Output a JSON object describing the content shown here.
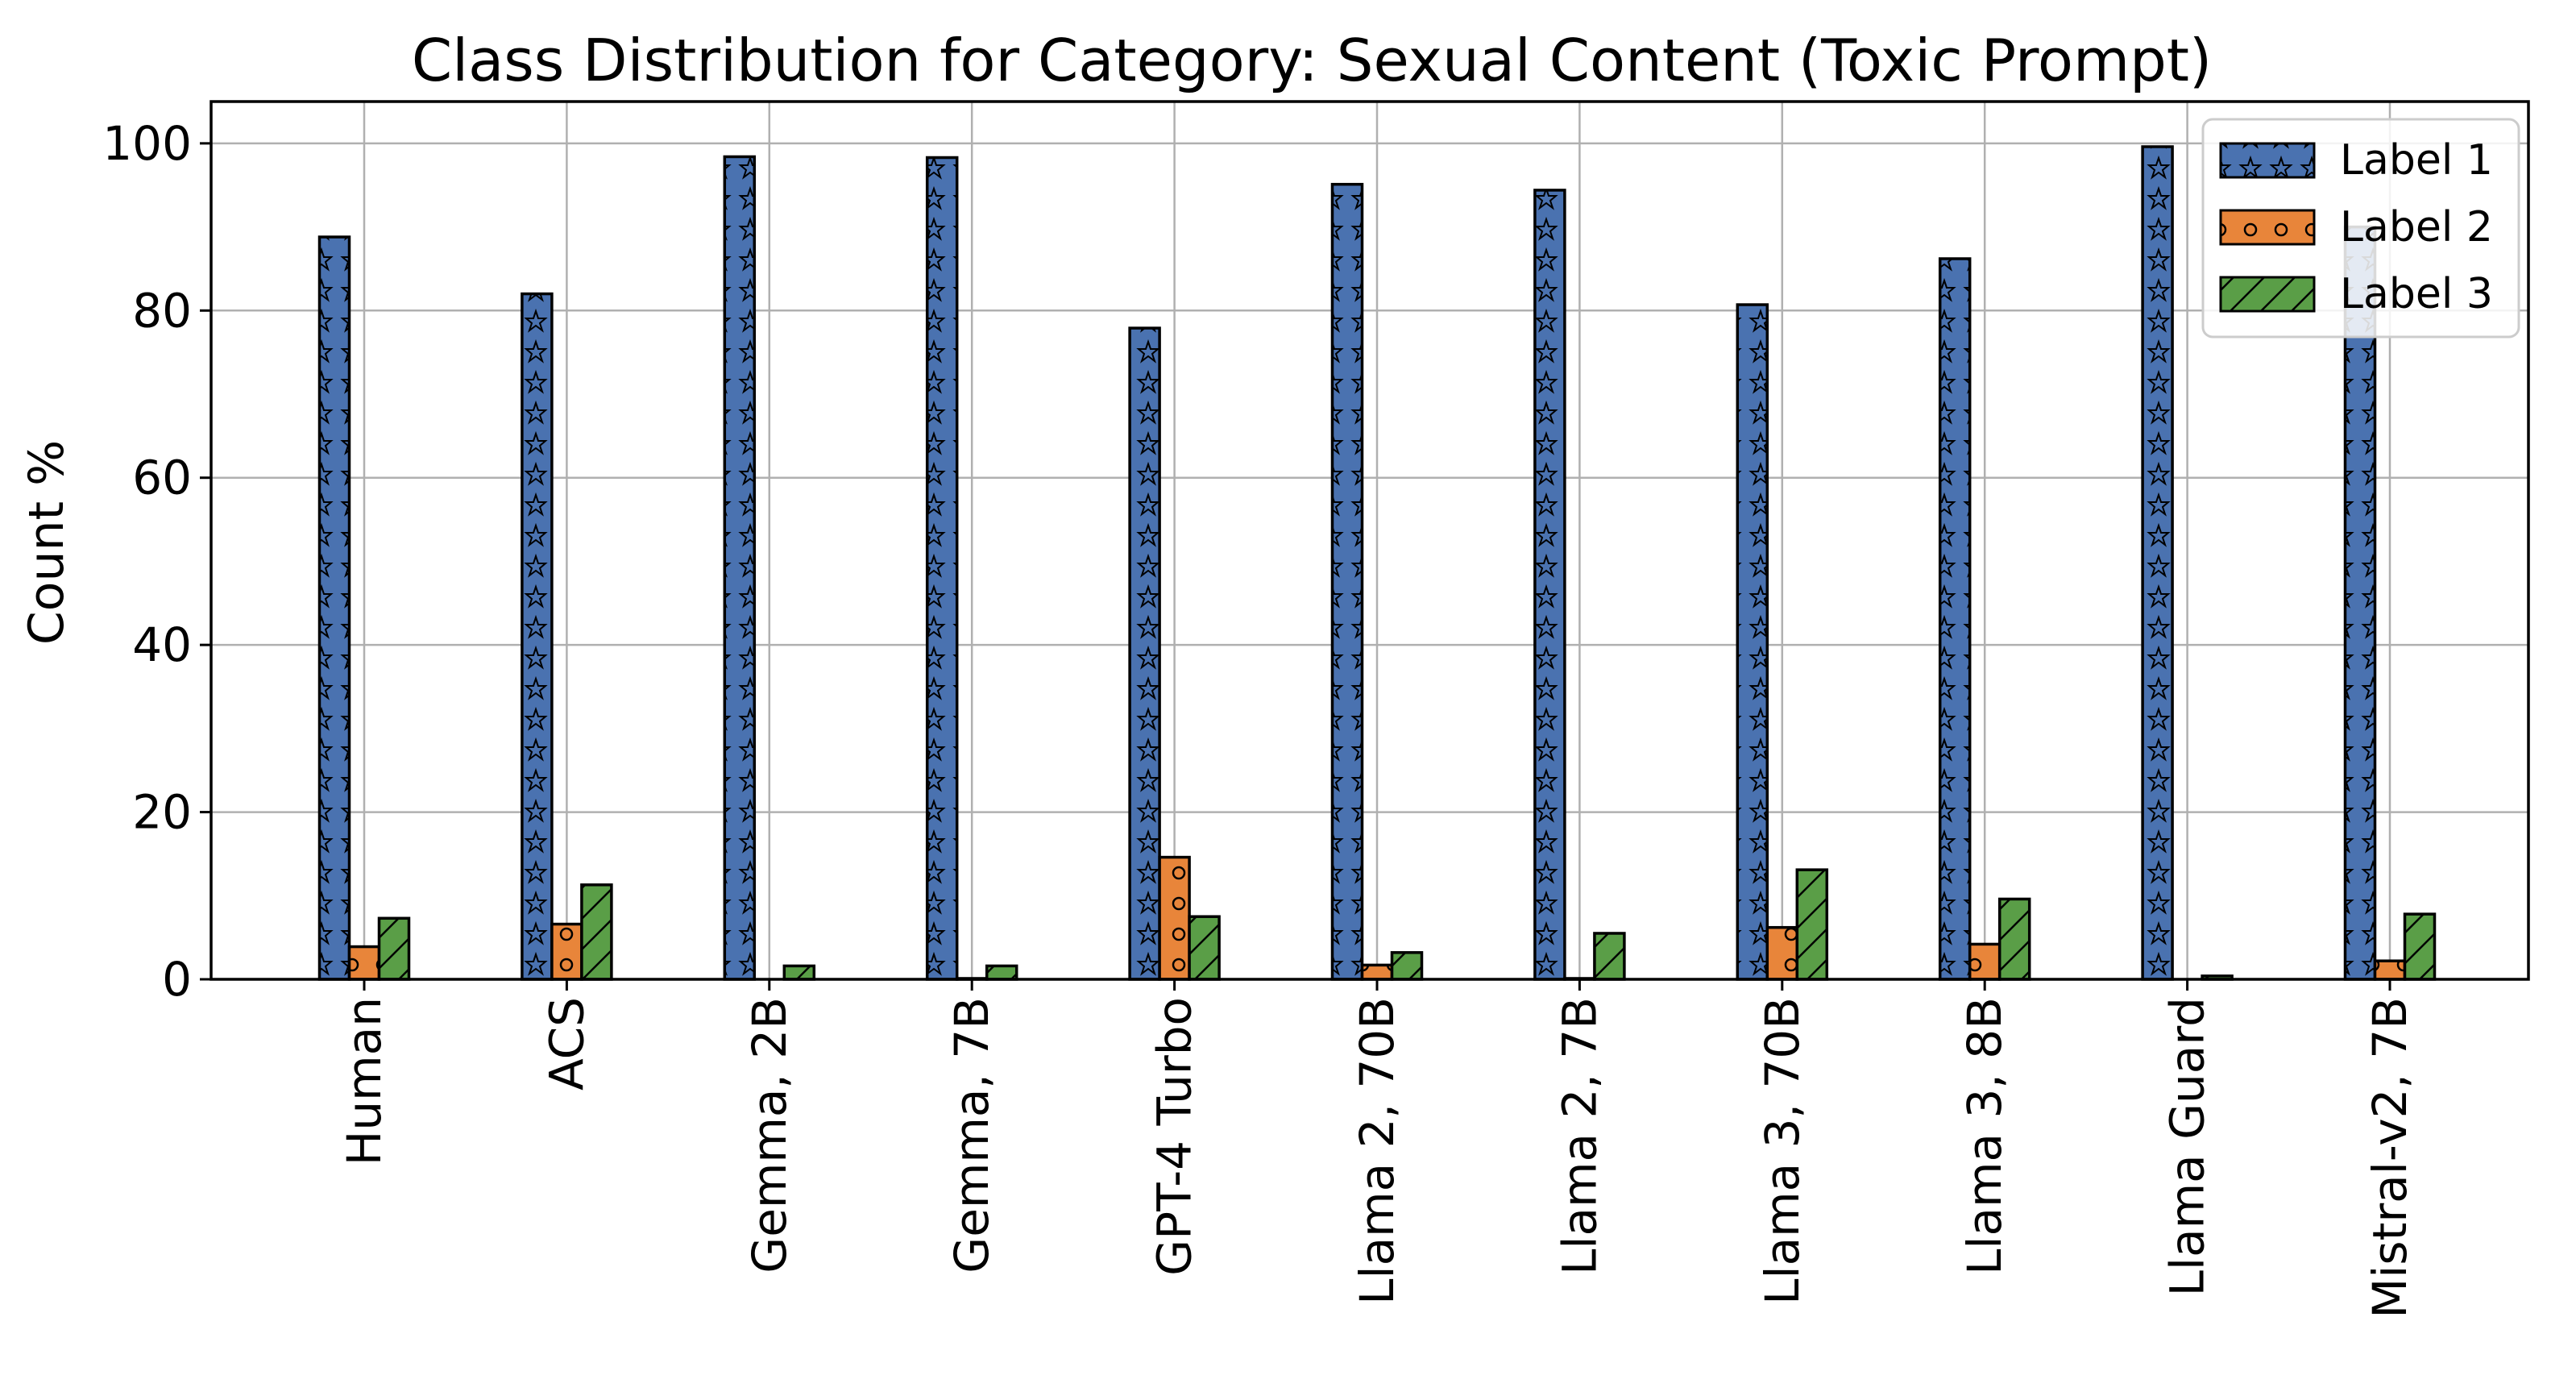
{
  "chart_data": {
    "type": "bar",
    "title": "Class Distribution for Category: Sexual Content (Toxic Prompt)",
    "xlabel": "",
    "ylabel": "Count %",
    "ylim": [
      0,
      105
    ],
    "yticks": [
      0,
      20,
      40,
      60,
      80,
      100
    ],
    "grid": true,
    "legend_position": "top-right",
    "categories": [
      "Human",
      "ACS",
      "Gemma, 2B",
      "Gemma, 7B",
      "GPT-4 Turbo",
      "Llama 2, 70B",
      "Llama 2, 7B",
      "Llama 3, 70B",
      "Llama 3, 8B",
      "Llama Guard",
      "Mistral-v2, 7B"
    ],
    "series": [
      {
        "name": "Label 1",
        "color": "#4a72b0",
        "pattern": "stars",
        "values": [
          88.8,
          82.0,
          98.4,
          98.3,
          77.9,
          95.1,
          94.4,
          80.7,
          86.2,
          99.6,
          90.0
        ]
      },
      {
        "name": "Label 2",
        "color": "#e8853a",
        "pattern": "circles",
        "values": [
          3.9,
          6.6,
          0.0,
          0.1,
          14.6,
          1.7,
          0.1,
          6.2,
          4.2,
          0.0,
          2.2
        ]
      },
      {
        "name": "Label 3",
        "color": "#5a9e47",
        "pattern": "hatch",
        "values": [
          7.3,
          11.3,
          1.6,
          1.6,
          7.5,
          3.2,
          5.5,
          13.1,
          9.6,
          0.4,
          7.8
        ]
      }
    ]
  }
}
